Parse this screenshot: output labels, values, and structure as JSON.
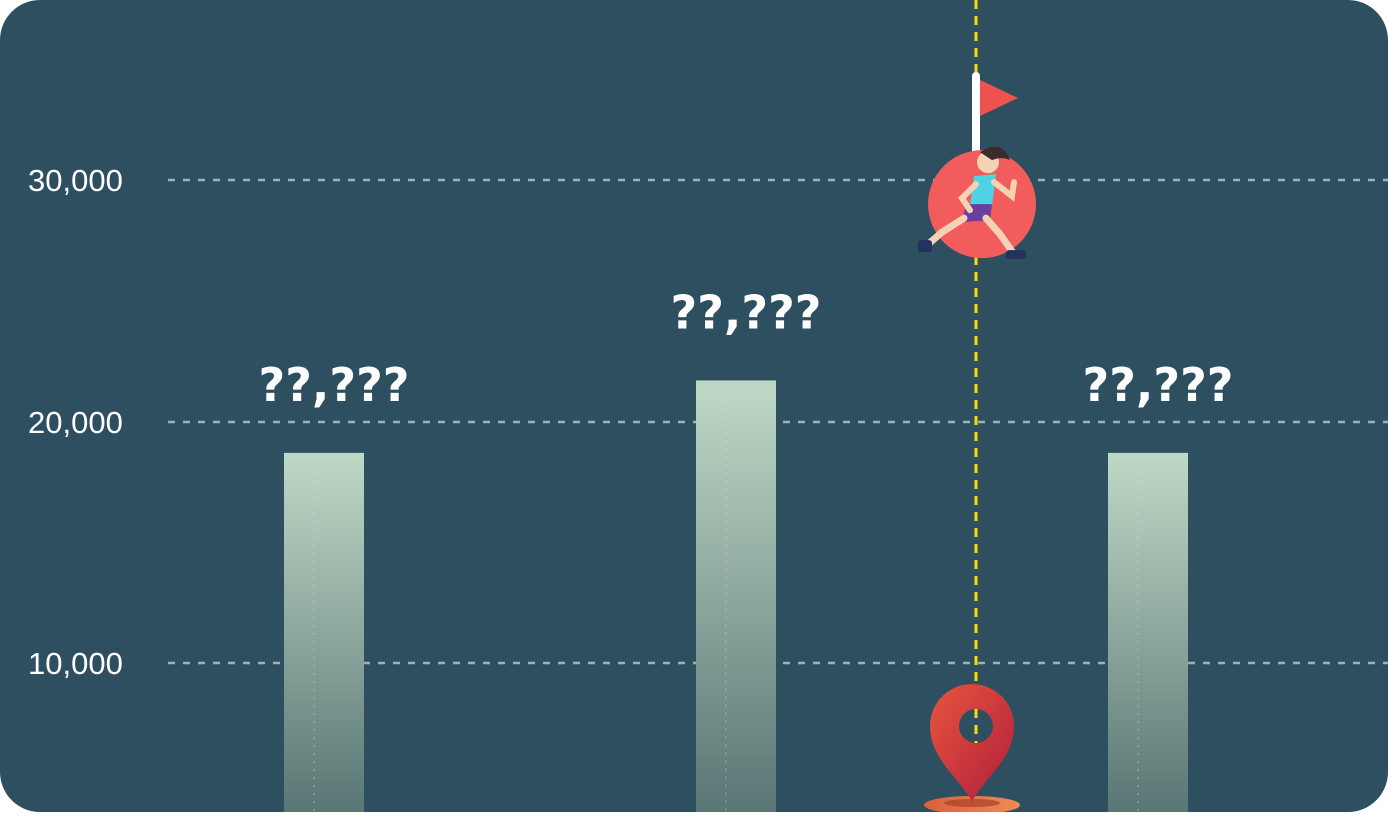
{
  "chart_data": {
    "type": "bar",
    "categories": [
      "",
      "",
      "",
      ""
    ],
    "values": [
      18700,
      21700,
      null,
      18700
    ],
    "bar_labels": [
      "??,???",
      "??,???",
      "",
      "??,???"
    ],
    "ylim": [
      5500,
      33000
    ],
    "yticks": [
      10000,
      20000,
      30000
    ],
    "ytick_labels": [
      "10,000",
      "20,000",
      "30,000"
    ],
    "goal_value": 29000,
    "grid": true,
    "colors": {
      "background": "#2d4f5f",
      "bar_top": "#bfd9c6",
      "bar_bottom": "#5a7675",
      "grid": "#9db1b8",
      "marker_line": "#ffdd00",
      "goal_circle": "#f25c5c",
      "flag": "#ef5350",
      "pin": "#c8283a"
    },
    "icons": {
      "goal": "runner-icon",
      "flag": "flag-icon",
      "current": "map-pin-icon"
    }
  }
}
